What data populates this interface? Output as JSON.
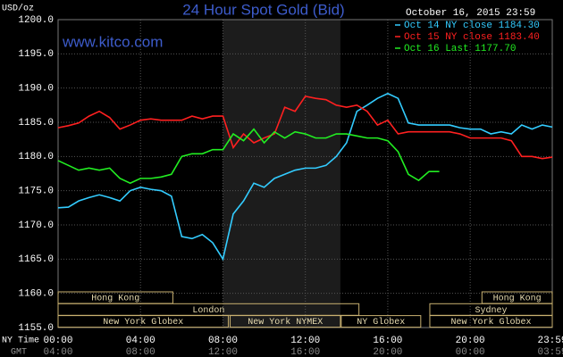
{
  "chart_data": {
    "type": "line",
    "title": "24 Hour Spot Gold (Bid)",
    "subtitle": "www.kitco.com",
    "timestamp": "October 16, 2015 23:59",
    "ylabel": "USD/oz",
    "xlabel": "NY Time",
    "x2label": "GMT",
    "xlim": [
      0,
      23.983
    ],
    "ylim": [
      1155,
      1200
    ],
    "grid": true,
    "highlight": [
      8,
      13.7
    ],
    "yticks": [
      {
        "value": 1155,
        "label": "1155.0"
      },
      {
        "value": 1160,
        "label": "1160.0"
      },
      {
        "value": 1165,
        "label": "1165.0"
      },
      {
        "value": 1170,
        "label": "1170.0"
      },
      {
        "value": 1175,
        "label": "1175.0"
      },
      {
        "value": 1180,
        "label": "1180.0"
      },
      {
        "value": 1185,
        "label": "1185.0"
      },
      {
        "value": 1190,
        "label": "1190.0"
      },
      {
        "value": 1195,
        "label": "1195.0"
      },
      {
        "value": 1200,
        "label": "1200.0"
      }
    ],
    "xticks": [
      {
        "value": 0,
        "label": "00:00"
      },
      {
        "value": 4,
        "label": "04:00"
      },
      {
        "value": 8,
        "label": "08:00"
      },
      {
        "value": 12,
        "label": "12:00"
      },
      {
        "value": 16,
        "label": "16:00"
      },
      {
        "value": 20,
        "label": "20:00"
      },
      {
        "value": 23.983,
        "label": "23:59"
      }
    ],
    "x2ticks": [
      {
        "value": 0,
        "label": "04:00"
      },
      {
        "value": 4,
        "label": "08:00"
      },
      {
        "value": 8,
        "label": "12:00"
      },
      {
        "value": 12,
        "label": "16:00"
      },
      {
        "value": 16,
        "label": "20:00"
      },
      {
        "value": 20,
        "label": "00:00"
      },
      {
        "value": 23.983,
        "label": "03:59"
      }
    ],
    "x": [
      0,
      0.5,
      1,
      1.5,
      2,
      2.5,
      3,
      3.5,
      4,
      4.5,
      5,
      5.5,
      6,
      6.5,
      7,
      7.5,
      8,
      8.5,
      9,
      9.5,
      10,
      10.5,
      11,
      11.5,
      12,
      12.5,
      13,
      13.5,
      14,
      14.5,
      15,
      15.5,
      16,
      16.5,
      17,
      17.5,
      18,
      18.5,
      19,
      19.5,
      20,
      20.5,
      21,
      21.5,
      22,
      22.5,
      23,
      23.5,
      23.983
    ],
    "series": [
      {
        "name": "Oct 14 NY close 1184.30",
        "color": "#33ccff",
        "values": [
          1172.5,
          1172.6,
          1173.5,
          1174,
          1174.4,
          1174,
          1173.5,
          1175,
          1175.5,
          1175.2,
          1175,
          1174.2,
          1168.3,
          1168,
          1168.6,
          1167.4,
          1165,
          1171.6,
          1173.5,
          1176.1,
          1175.5,
          1176.8,
          1177.4,
          1178,
          1178.3,
          1178.3,
          1178.7,
          1180,
          1182,
          1186.6,
          1187.5,
          1188.5,
          1189.2,
          1188.5,
          1184.9,
          1184.6,
          1184.6,
          1184.6,
          1184.6,
          1184.2,
          1184,
          1184,
          1183.3,
          1183.6,
          1183.3,
          1184.6,
          1184,
          1184.6,
          1184.3
        ]
      },
      {
        "name": "Oct 15 NY close 1183.40",
        "color": "#ff2020",
        "values": [
          1184.2,
          1184.5,
          1184.9,
          1185.9,
          1186.6,
          1185.7,
          1184,
          1184.6,
          1185.3,
          1185.5,
          1185.3,
          1185.3,
          1185.3,
          1185.9,
          1185.5,
          1185.9,
          1185.9,
          1181.3,
          1183.3,
          1182,
          1182.7,
          1183.3,
          1187.2,
          1186.6,
          1188.8,
          1188.5,
          1188.3,
          1187.5,
          1187.2,
          1187.5,
          1186.6,
          1184.6,
          1185.3,
          1183.3,
          1183.6,
          1183.6,
          1183.6,
          1183.6,
          1183.6,
          1183.3,
          1182.7,
          1182.7,
          1182.7,
          1182.7,
          1182.3,
          1180,
          1180,
          1179.7,
          1179.9
        ]
      },
      {
        "name": "Oct 16 Last 1177.70",
        "color": "#22ee22",
        "values": [
          1179.4,
          1178.7,
          1178,
          1178.3,
          1178,
          1178.3,
          1176.8,
          1176.1,
          1176.8,
          1176.8,
          1177,
          1177.4,
          1180,
          1180.4,
          1180.4,
          1181,
          1181,
          1183.3,
          1182.3,
          1184,
          1182,
          1183.6,
          1182.7,
          1183.6,
          1183.3,
          1182.7,
          1182.7,
          1183.3,
          1183.3,
          1183,
          1182.7,
          1182.7,
          1182.3,
          1180.7,
          1177.4,
          1176.5,
          1177.8,
          1177.8,
          null,
          null,
          null,
          null,
          null,
          null,
          null,
          null,
          null,
          null,
          null
        ]
      }
    ],
    "sessions": [
      [
        {
          "label": "Hong Kong",
          "start": 0,
          "end": 5.57
        },
        {
          "label": "Hong Kong",
          "start": 20.57,
          "end": 23.983
        }
      ],
      [
        {
          "label": "London",
          "start": 0,
          "end": 14.6
        },
        {
          "label": "Sydney",
          "start": 18.04,
          "end": 23.983
        }
      ],
      [
        {
          "label": "New York Globex",
          "start": 0,
          "end": 8.26
        },
        {
          "label": "New York NYMEX",
          "start": 8.35,
          "end": 13.7
        },
        {
          "label": "NY Globex",
          "start": 13.74,
          "end": 17.6
        },
        {
          "label": "New York Globex",
          "start": 18.04,
          "end": 23.983
        }
      ]
    ]
  }
}
